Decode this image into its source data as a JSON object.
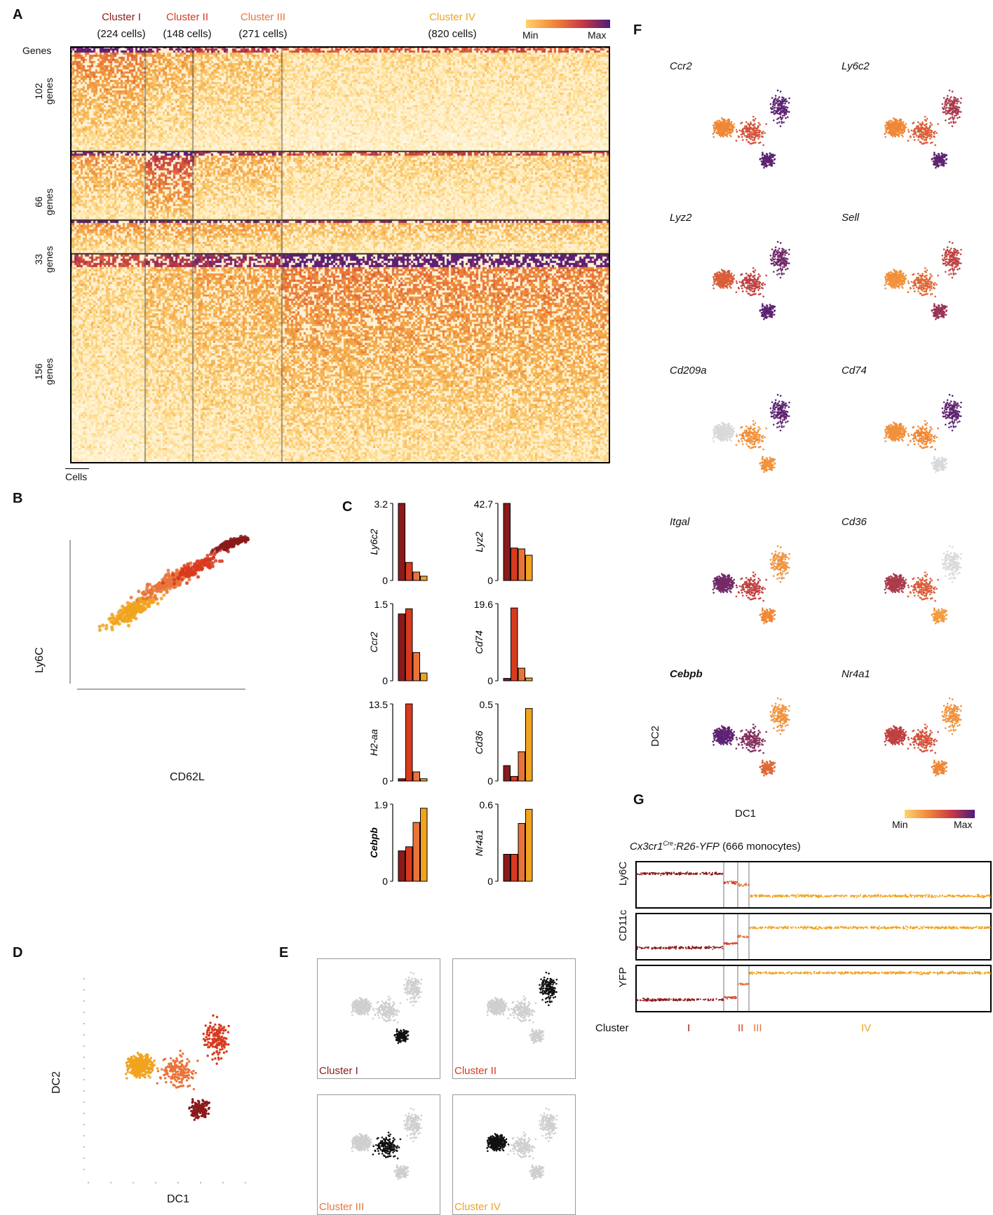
{
  "panels": {
    "A": "A",
    "B": "B",
    "C": "C",
    "D": "D",
    "E": "E",
    "F": "F",
    "G": "G"
  },
  "colors": {
    "cluster1": "#8b1a1a",
    "cluster2": "#d83a1e",
    "cluster3": "#e9743a",
    "cluster4": "#f1a31f",
    "min": "#ffe08a",
    "max": "#4b1d7a"
  },
  "panel_a": {
    "clusters": [
      {
        "name": "Cluster I",
        "cells": "(224 cells)"
      },
      {
        "name": "Cluster II",
        "cells": "(148 cells)"
      },
      {
        "name": "Cluster III",
        "cells": "(271 cells)"
      },
      {
        "name": "Cluster IV",
        "cells": "(820 cells)"
      }
    ],
    "legend_min": "Min",
    "legend_max": "Max",
    "genes_label": "Genes",
    "gene_groups": [
      {
        "n": "102",
        "unit": "genes"
      },
      {
        "n": "66",
        "unit": "genes"
      },
      {
        "n": "33",
        "unit": "genes"
      },
      {
        "n": "156",
        "unit": "genes"
      }
    ],
    "cells_label": "Cells"
  },
  "panel_b": {
    "xlabel": "CD62L",
    "ylabel": "Ly6C"
  },
  "panel_d": {
    "xlabel": "DC1",
    "ylabel": "DC2"
  },
  "panel_e": {
    "labels": [
      "Cluster I",
      "Cluster II",
      "Cluster III",
      "Cluster IV"
    ]
  },
  "panel_f": {
    "genes": [
      "Ccr2",
      "Ly6c2",
      "Lyz2",
      "Sell",
      "Cd209a",
      "Cd74",
      "Itgal",
      "Cd36",
      "Cebpb",
      "Nr4a1"
    ],
    "xlabel": "DC1",
    "ylabel": "DC2",
    "legend_min": "Min",
    "legend_max": "Max"
  },
  "panel_g": {
    "title_gene": "Cx3cr1",
    "title_super": "Cre",
    "title_rest": ":R26-YFP",
    "title_count": "(666 monocytes)",
    "rows": [
      "Ly6C",
      "CD11c",
      "YFP"
    ],
    "cluster_label": "Cluster",
    "cluster_ticks": [
      "I",
      "II",
      "III",
      "IV"
    ]
  },
  "chart_data": [
    {
      "type": "bar",
      "panel": "C",
      "categories": [
        "I",
        "II",
        "III",
        "IV"
      ],
      "series": [
        {
          "name": "Ly6c2",
          "ymax": "3.2",
          "values": [
            3.2,
            0.75,
            0.35,
            0.18
          ]
        },
        {
          "name": "Lyz2",
          "ymax": "42.7",
          "values": [
            42.7,
            18,
            17.5,
            14
          ]
        },
        {
          "name": "Ccr2",
          "ymax": "1.5",
          "values": [
            1.3,
            1.4,
            0.55,
            0.15
          ]
        },
        {
          "name": "Cd74",
          "ymax": "19.6",
          "values": [
            0.6,
            18.5,
            3.2,
            0.7
          ]
        },
        {
          "name": "H2-aa",
          "ymax": "13.5",
          "values": [
            0.4,
            13.5,
            1.6,
            0.4
          ]
        },
        {
          "name": "Cd36",
          "ymax": "0.5",
          "values": [
            0.1,
            0.03,
            0.19,
            0.47
          ]
        },
        {
          "name": "Cebpb",
          "ymax": "1.9",
          "values": [
            0.75,
            0.85,
            1.45,
            1.8
          ]
        },
        {
          "name": "Nr4a1",
          "ymax": "0.6",
          "values": [
            0.21,
            0.21,
            0.45,
            0.56
          ]
        }
      ],
      "ylim_min": "0"
    }
  ]
}
